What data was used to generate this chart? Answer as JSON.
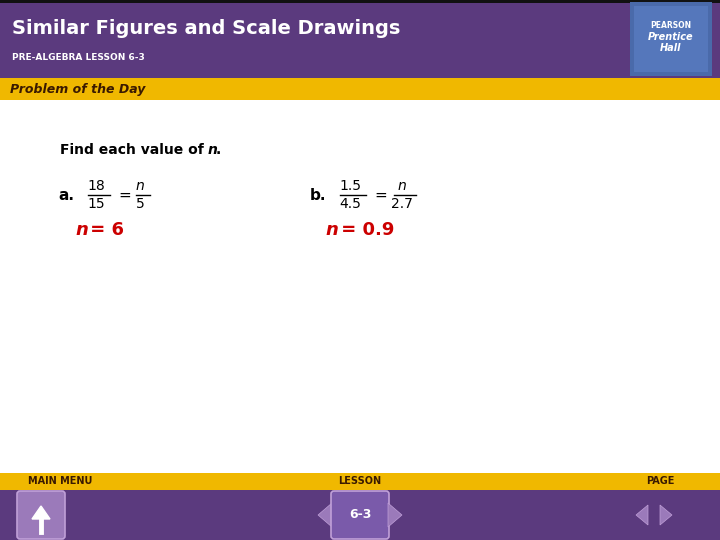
{
  "title": "Similar Figures and Scale Drawings",
  "subtitle": "PRE-ALGEBRA LESSON 6-3",
  "section_label": "Problem of the Day",
  "header_bg": "#5b3a7e",
  "header_text_color": "#ffffff",
  "subtitle_text_color": "#ffffff",
  "section_bg": "#f0b800",
  "section_text_color": "#3a1a00",
  "main_bg": "#ffffff",
  "answer_color": "#cc0000",
  "footer_main_menu": "MAIN MENU",
  "footer_lesson": "LESSON",
  "footer_page": "PAGE",
  "footer_lesson_num": "6-3",
  "pearson_bg": "#4a6aaa",
  "pearson_inner_bg": "#5577bb",
  "button_face": "#9b7aba",
  "button_dark": "#7a5aaa"
}
